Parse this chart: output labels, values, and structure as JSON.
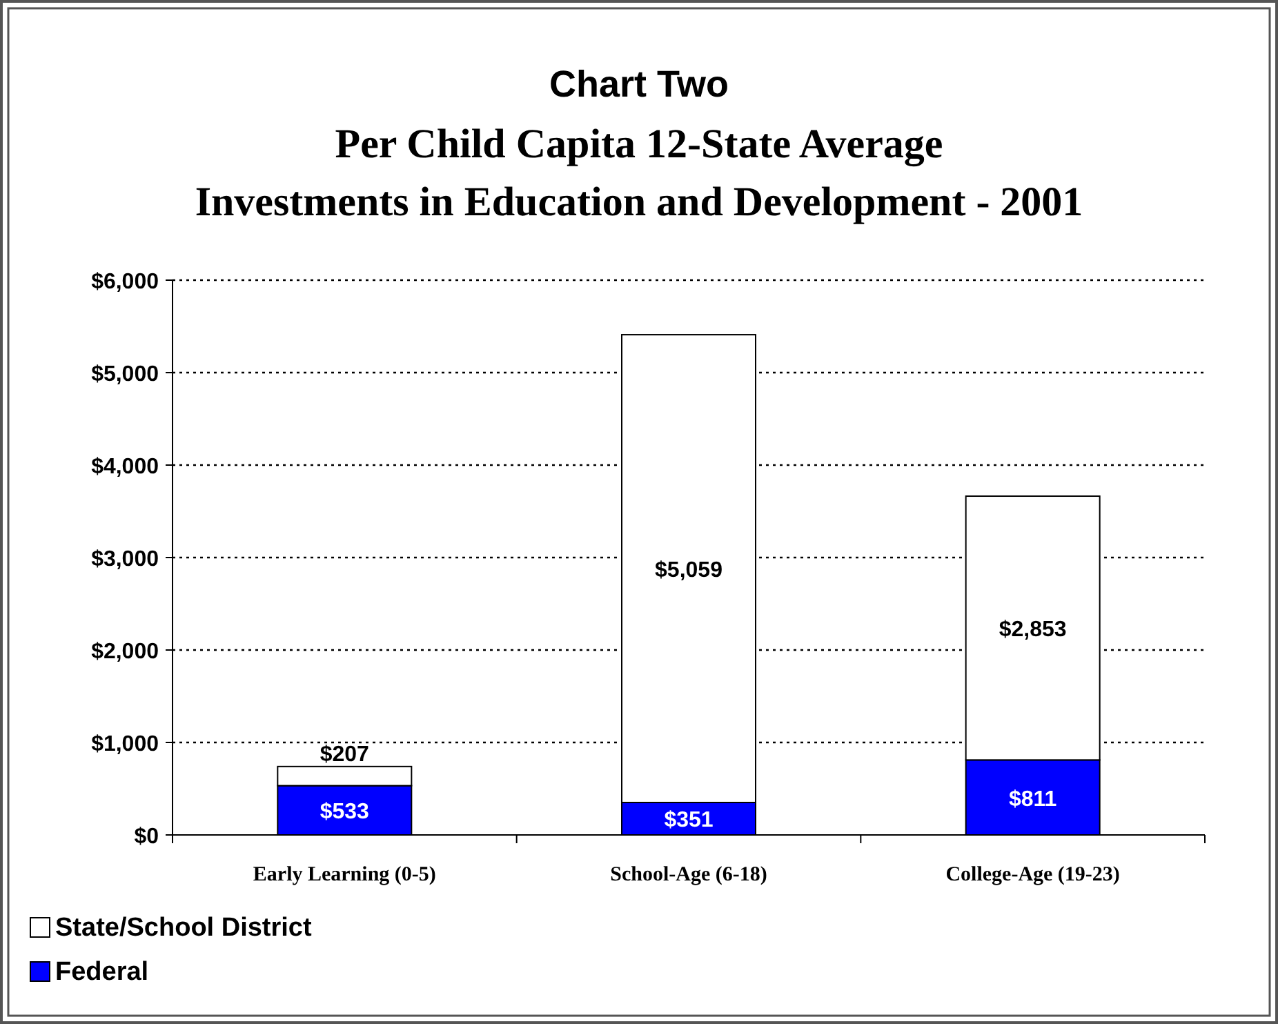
{
  "chart_data": {
    "type": "bar",
    "title": "Chart Two",
    "subtitle": "Per Child Capita 12-State Average\nInvestments in Education and Development - 2001",
    "categories": [
      "Early Learning (0-5)",
      "School-Age (6-18)",
      "College-Age (19-23)"
    ],
    "stacked": true,
    "series": [
      {
        "name": "Federal",
        "color": "#0000ff",
        "values": [
          533,
          351,
          811
        ],
        "value_labels": [
          "$533",
          "$351",
          "$811"
        ]
      },
      {
        "name": "State/School District",
        "color": "#ffffff",
        "values": [
          207,
          5059,
          2853
        ],
        "value_labels": [
          "$207",
          "$5,059",
          "$2,853"
        ]
      }
    ],
    "ylim": [
      0,
      6000
    ],
    "yticks": [
      {
        "value": 0,
        "label": "$0"
      },
      {
        "value": 1000,
        "label": "$1,000"
      },
      {
        "value": 2000,
        "label": "$2,000"
      },
      {
        "value": 3000,
        "label": "$3,000"
      },
      {
        "value": 4000,
        "label": "$4,000"
      },
      {
        "value": 5000,
        "label": "$5,000"
      },
      {
        "value": 6000,
        "label": "$6,000"
      }
    ],
    "grid": "y",
    "legend": "bottom left"
  }
}
